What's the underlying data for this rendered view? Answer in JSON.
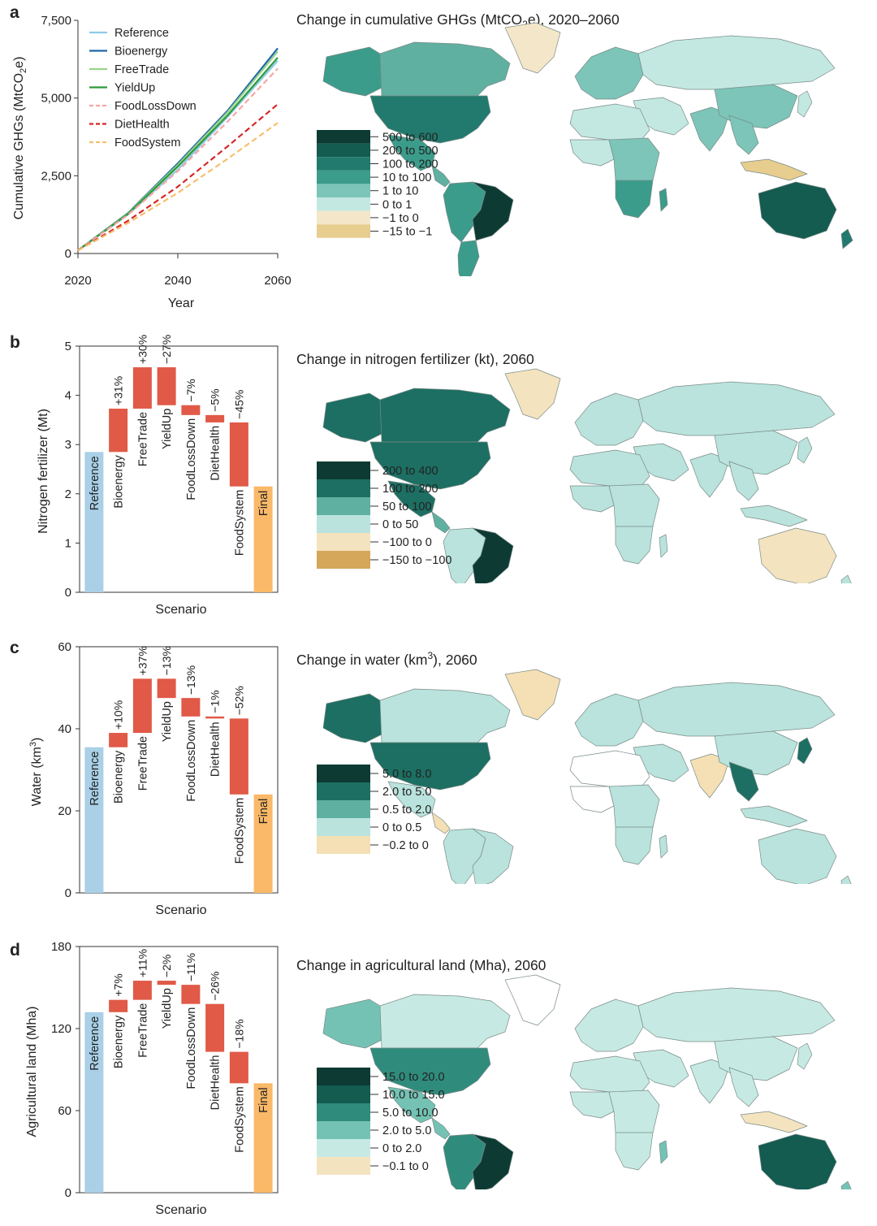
{
  "panel_letters": [
    "a",
    "b",
    "c",
    "d"
  ],
  "map_titles": [
    {
      "pre": "Change in cumulative GHGs (MtCO",
      "sub": "2",
      "post": "e), 2020–2060"
    },
    {
      "pre": "Change in nitrogen fertilizer (kt), 2060",
      "sub": "",
      "post": ""
    },
    {
      "pre": "Change in water (km",
      "sup": "3",
      "post": "), 2060"
    },
    {
      "pre": "Change in agricultural land (Mha), 2060",
      "sub": "",
      "post": ""
    }
  ],
  "legends": [
    {
      "items": [
        {
          "label": "500 to 600",
          "color": "#0d3b34"
        },
        {
          "label": "200 to 500",
          "color": "#145b50"
        },
        {
          "label": "100 to 200",
          "color": "#217a6d"
        },
        {
          "label": "10 to 100",
          "color": "#3c9c8b"
        },
        {
          "label": "1 to 10",
          "color": "#7cc5b8"
        },
        {
          "label": "0 to 1",
          "color": "#c2e8e1"
        },
        {
          "label": "−1 to 0",
          "color": "#f4e7c9"
        },
        {
          "label": "−15 to −1",
          "color": "#e7cd8e"
        }
      ]
    },
    {
      "items": [
        {
          "label": "200 to 400",
          "color": "#0d3b34"
        },
        {
          "label": "100 to 200",
          "color": "#1c6f62"
        },
        {
          "label": "50 to 100",
          "color": "#5fb0a1"
        },
        {
          "label": "0 to 50",
          "color": "#b9e3dc"
        },
        {
          "label": "−100 to 0",
          "color": "#f4e3bf"
        },
        {
          "label": "−150 to −100",
          "color": "#d4a75a"
        }
      ]
    },
    {
      "items": [
        {
          "label": "5.0 to 8.0",
          "color": "#0d3b34"
        },
        {
          "label": "2.0 to 5.0",
          "color": "#1c6f62"
        },
        {
          "label": "0.5 to 2.0",
          "color": "#5fb0a1"
        },
        {
          "label": "0 to 0.5",
          "color": "#b9e3dc"
        },
        {
          "label": "−0.2 to 0",
          "color": "#f4e0b4"
        }
      ]
    },
    {
      "items": [
        {
          "label": "15.0 to 20.0",
          "color": "#0d3b34"
        },
        {
          "label": "10.0 to 15.0",
          "color": "#145b50"
        },
        {
          "label": "5.0 to 10.0",
          "color": "#2f8c7c"
        },
        {
          "label": "2.0 to 5.0",
          "color": "#74c2b4"
        },
        {
          "label": "0 to 2.0",
          "color": "#c6eae3"
        },
        {
          "label": "−0.1 to 0",
          "color": "#f4e3bf"
        }
      ]
    }
  ],
  "chart_data": [
    {
      "type": "line",
      "xlabel": "Year",
      "ylabel": "Cumulative GHGs (MtCO",
      "ylabel_sub": "2",
      "ylabel_post": "e)",
      "xlim": [
        2020,
        2060
      ],
      "ylim": [
        0,
        7500
      ],
      "xticks": [
        2020,
        2040,
        2060
      ],
      "yticks": [
        0,
        2500,
        5000,
        7500
      ],
      "ytick_labels": [
        "0",
        "2,500",
        "5,000",
        "7,500"
      ],
      "legend_position": "top-left",
      "x": [
        2020,
        2030,
        2040,
        2050,
        2060
      ],
      "series": [
        {
          "name": "Reference",
          "color": "#8ecae6",
          "dash": "",
          "values": [
            100,
            1250,
            2700,
            4400,
            6200
          ]
        },
        {
          "name": "Bioenergy",
          "color": "#2167a8",
          "dash": "",
          "values": [
            100,
            1300,
            2900,
            4600,
            6600
          ]
        },
        {
          "name": "FreeTrade",
          "color": "#98d38a",
          "dash": "",
          "values": [
            100,
            1290,
            2850,
            4550,
            6500
          ]
        },
        {
          "name": "YieldUp",
          "color": "#2e9a3a",
          "dash": "",
          "values": [
            100,
            1270,
            2800,
            4450,
            6300
          ]
        },
        {
          "name": "FoodLossDown",
          "color": "#f4a6a6",
          "dash": "7,4",
          "values": [
            100,
            1240,
            2650,
            4250,
            5950
          ]
        },
        {
          "name": "DietHealth",
          "color": "#d62728",
          "dash": "7,4",
          "values": [
            100,
            1050,
            2150,
            3450,
            4800
          ]
        },
        {
          "name": "FoodSystem",
          "color": "#f6bf6e",
          "dash": "7,4",
          "values": [
            100,
            980,
            1950,
            3050,
            4200
          ]
        }
      ]
    },
    {
      "type": "bar",
      "subtype": "waterfall",
      "ylabel": "Nitrogen fertilizer (Mt)",
      "xlabel": "Scenario",
      "ylim": [
        0,
        5
      ],
      "yticks": [
        0,
        1,
        2,
        3,
        4,
        5
      ],
      "bars": [
        {
          "name": "Reference",
          "start": 0,
          "end": 2.85,
          "kind": "total",
          "pct": ""
        },
        {
          "name": "Bioenergy",
          "start": 2.85,
          "end": 3.73,
          "kind": "delta",
          "pct": "+31%"
        },
        {
          "name": "FreeTrade",
          "start": 3.73,
          "end": 4.57,
          "kind": "delta",
          "pct": "+30%"
        },
        {
          "name": "YieldUp",
          "start": 4.57,
          "end": 3.8,
          "kind": "delta",
          "pct": "−27%"
        },
        {
          "name": "FoodLossDown",
          "start": 3.8,
          "end": 3.6,
          "kind": "delta",
          "pct": "−7%"
        },
        {
          "name": "DietHealth",
          "start": 3.6,
          "end": 3.45,
          "kind": "delta",
          "pct": "−5%"
        },
        {
          "name": "FoodSystem",
          "start": 3.45,
          "end": 2.15,
          "kind": "delta",
          "pct": "−45%"
        },
        {
          "name": "Final",
          "start": 0,
          "end": 2.15,
          "kind": "final",
          "pct": ""
        }
      ]
    },
    {
      "type": "bar",
      "subtype": "waterfall",
      "ylabel": "Water (km",
      "ylabel_sup": "3",
      "ylabel_post": ")",
      "xlabel": "Scenario",
      "ylim": [
        0,
        60
      ],
      "yticks": [
        0,
        20,
        40,
        60
      ],
      "bars": [
        {
          "name": "Reference",
          "start": 0,
          "end": 35.5,
          "kind": "total",
          "pct": ""
        },
        {
          "name": "Bioenergy",
          "start": 35.5,
          "end": 39.0,
          "kind": "delta",
          "pct": "+10%"
        },
        {
          "name": "FreeTrade",
          "start": 39.0,
          "end": 52.2,
          "kind": "delta",
          "pct": "+37%"
        },
        {
          "name": "YieldUp",
          "start": 52.2,
          "end": 47.5,
          "kind": "delta",
          "pct": "−13%"
        },
        {
          "name": "FoodLossDown",
          "start": 47.5,
          "end": 43.0,
          "kind": "delta",
          "pct": "−13%"
        },
        {
          "name": "DietHealth",
          "start": 43.0,
          "end": 42.5,
          "kind": "delta",
          "pct": "−1%"
        },
        {
          "name": "FoodSystem",
          "start": 42.5,
          "end": 24.0,
          "kind": "delta",
          "pct": "−52%"
        },
        {
          "name": "Final",
          "start": 0,
          "end": 24.0,
          "kind": "final",
          "pct": ""
        }
      ]
    },
    {
      "type": "bar",
      "subtype": "waterfall",
      "ylabel": "Agricultural land (Mha)",
      "xlabel": "Scenario",
      "ylim": [
        0,
        180
      ],
      "yticks": [
        0,
        60,
        120,
        180
      ],
      "bars": [
        {
          "name": "Reference",
          "start": 0,
          "end": 132,
          "kind": "total",
          "pct": ""
        },
        {
          "name": "Bioenergy",
          "start": 132,
          "end": 141,
          "kind": "delta",
          "pct": "+7%"
        },
        {
          "name": "FreeTrade",
          "start": 141,
          "end": 155,
          "kind": "delta",
          "pct": "+11%"
        },
        {
          "name": "YieldUp",
          "start": 155,
          "end": 152,
          "kind": "delta",
          "pct": "−2%"
        },
        {
          "name": "FoodLossDown",
          "start": 152,
          "end": 138,
          "kind": "delta",
          "pct": "−11%"
        },
        {
          "name": "DietHealth",
          "start": 138,
          "end": 103,
          "kind": "delta",
          "pct": "−26%"
        },
        {
          "name": "FoodSystem",
          "start": 103,
          "end": 80,
          "kind": "delta",
          "pct": "−18%"
        },
        {
          "name": "Final",
          "start": 0,
          "end": 80,
          "kind": "final",
          "pct": ""
        }
      ]
    }
  ],
  "maps": [
    {
      "regions": {
        "canada": "#5fb0a1",
        "alaska": "#3c9c8b",
        "greenland": "#f4e7c9",
        "usa": "#217a6d",
        "mexico": "#3c9c8b",
        "centralam": "#5fb0a1",
        "brazil": "#0d3b34",
        "southam": "#3c9c8b",
        "argentina": "#3c9c8b",
        "europe": "#7cc5b8",
        "russia": "#c2e8e1",
        "middleeast": "#c2e8e1",
        "africa_n": "#c2e8e1",
        "africa_w": "#c2e8e1",
        "africa_c": "#7cc5b8",
        "africa_s": "#3c9c8b",
        "madagascar": "#3c9c8b",
        "india": "#7cc5b8",
        "china": "#7cc5b8",
        "seasia": "#7cc5b8",
        "indonesia": "#e7cd8e",
        "japan": "#c2e8e1",
        "australia": "#145b50",
        "nz": "#217a6d"
      }
    },
    {
      "regions": {
        "canada": "#1c6f62",
        "alaska": "#1c6f62",
        "greenland": "#f4e3bf",
        "usa": "#1c6f62",
        "mexico": "#1c6f62",
        "centralam": "#5fb0a1",
        "brazil": "#0d3b34",
        "southam": "#b9e3dc",
        "argentina": "#b9e3dc",
        "europe": "#b9e3dc",
        "russia": "#b9e3dc",
        "middleeast": "#b9e3dc",
        "africa_n": "#b9e3dc",
        "africa_w": "#b9e3dc",
        "africa_c": "#b9e3dc",
        "africa_s": "#b9e3dc",
        "madagascar": "#b9e3dc",
        "india": "#b9e3dc",
        "china": "#b9e3dc",
        "seasia": "#b9e3dc",
        "indonesia": "#b9e3dc",
        "japan": "#b9e3dc",
        "australia": "#f4e3bf",
        "nz": "#b9e3dc"
      }
    },
    {
      "regions": {
        "canada": "#b9e3dc",
        "alaska": "#1c6f62",
        "greenland": "#f4e0b4",
        "usa": "#1c6f62",
        "mexico": "#b9e3dc",
        "centralam": "#f4e0b4",
        "brazil": "#b9e3dc",
        "southam": "#b9e3dc",
        "argentina": "#b9e3dc",
        "europe": "#b9e3dc",
        "russia": "#b9e3dc",
        "middleeast": "#b9e3dc",
        "africa_n": "#ffffff",
        "africa_w": "#ffffff",
        "africa_c": "#b9e3dc",
        "africa_s": "#b9e3dc",
        "madagascar": "#b9e3dc",
        "india": "#f4e0b4",
        "china": "#b9e3dc",
        "seasia": "#1c6f62",
        "indonesia": "#b9e3dc",
        "japan": "#1c6f62",
        "australia": "#b9e3dc",
        "nz": "#b9e3dc"
      }
    },
    {
      "regions": {
        "canada": "#c6eae3",
        "alaska": "#74c2b4",
        "greenland": "#ffffff",
        "usa": "#2f8c7c",
        "mexico": "#74c2b4",
        "centralam": "#74c2b4",
        "brazil": "#0d3b34",
        "southam": "#2f8c7c",
        "argentina": "#2f8c7c",
        "europe": "#c6eae3",
        "russia": "#c6eae3",
        "middleeast": "#c6eae3",
        "africa_n": "#c6eae3",
        "africa_w": "#c6eae3",
        "africa_c": "#c6eae3",
        "africa_s": "#c6eae3",
        "madagascar": "#74c2b4",
        "india": "#c6eae3",
        "china": "#c6eae3",
        "seasia": "#c6eae3",
        "indonesia": "#f4e3bf",
        "japan": "#c6eae3",
        "australia": "#145b50",
        "nz": "#74c2b4"
      }
    }
  ],
  "colors": {
    "reference_bar": "#a9d0e6",
    "delta_bar": "#e05a47",
    "final_bar": "#f9b968",
    "axis": "#333333",
    "country_border": "#7a8b88"
  }
}
